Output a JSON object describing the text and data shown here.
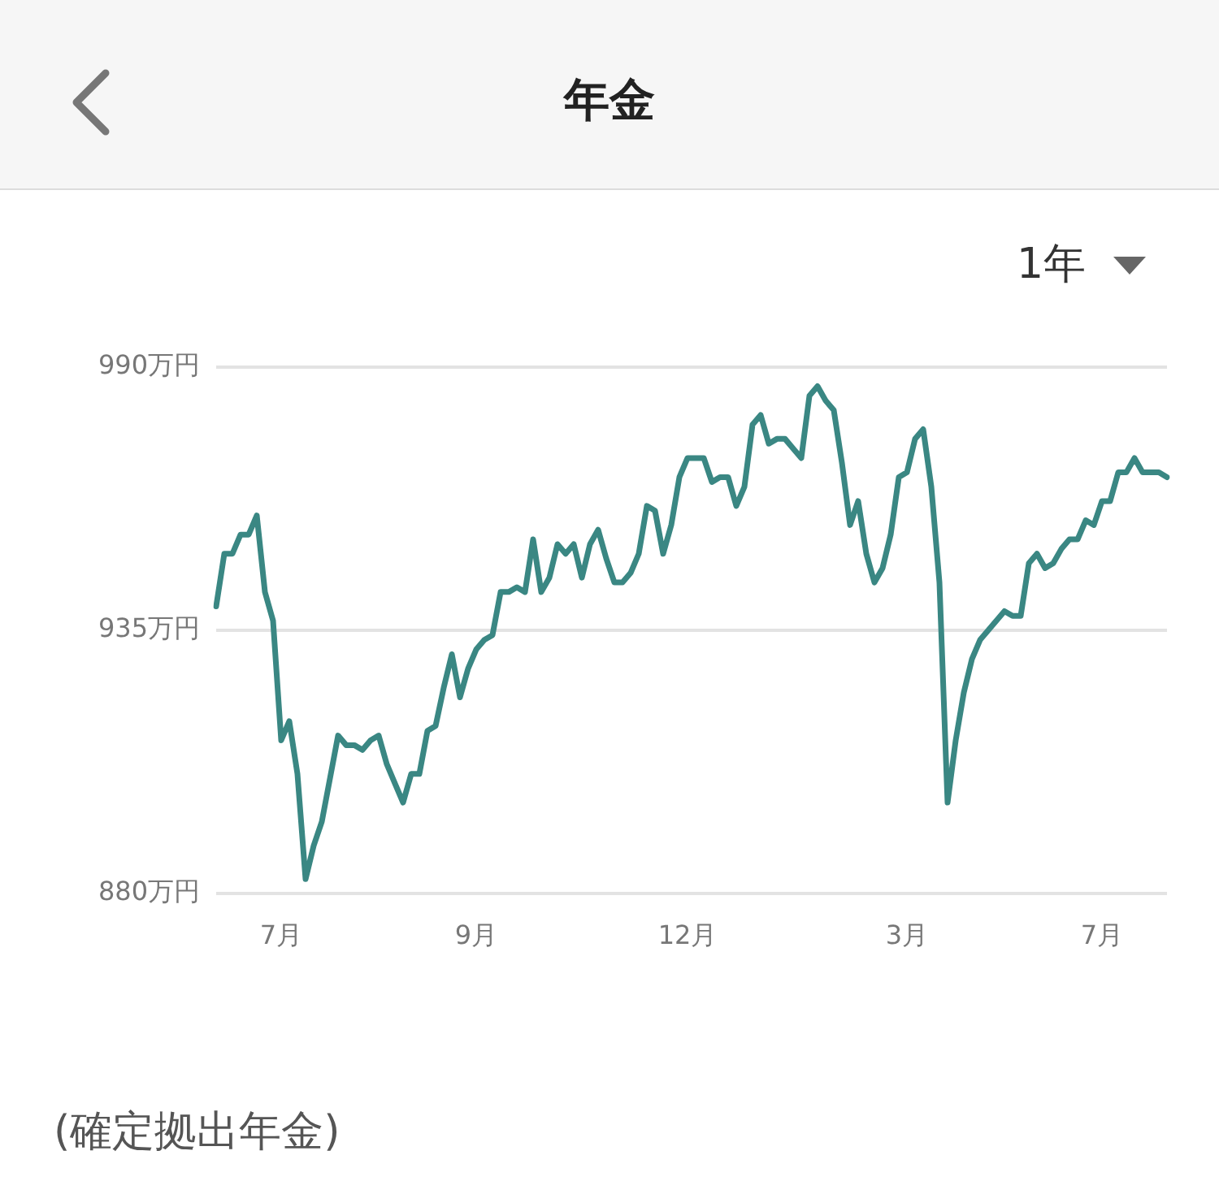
{
  "chart_data": {
    "type": "line",
    "title": "年金",
    "categories": [
      null,
      null,
      null,
      null,
      null,
      null,
      null,
      null,
      "7月",
      null,
      null,
      null,
      null,
      null,
      null,
      null,
      null,
      null,
      null,
      null,
      null,
      null,
      null,
      null,
      null,
      null,
      null,
      null,
      null,
      null,
      null,
      null,
      "9月",
      null,
      null,
      null,
      null,
      null,
      null,
      null,
      null,
      null,
      null,
      null,
      null,
      null,
      null,
      null,
      null,
      null,
      null,
      null,
      null,
      null,
      null,
      null,
      null,
      null,
      "12月",
      null,
      null,
      null,
      null,
      null,
      null,
      null,
      null,
      null,
      null,
      null,
      null,
      null,
      null,
      null,
      null,
      null,
      null,
      null,
      null,
      null,
      null,
      null,
      null,
      null,
      null,
      "3月",
      null,
      null,
      null,
      null,
      null,
      null,
      null,
      null,
      null,
      null,
      null,
      null,
      null,
      null,
      null,
      null,
      null,
      null,
      null,
      null,
      null,
      null,
      null,
      "7月",
      null,
      null,
      null,
      null,
      null,
      null,
      null,
      null
    ],
    "series": [
      {
        "color": "#3a8783",
        "values": [
          940,
          951,
          951,
          955,
          955,
          959,
          943,
          937,
          912,
          916,
          905,
          883,
          890,
          895,
          904,
          913,
          911,
          911,
          910,
          912,
          913,
          907,
          903,
          899,
          905,
          905,
          914,
          915,
          923,
          930,
          921,
          927,
          931,
          933,
          934,
          943,
          943,
          944,
          943,
          954,
          943,
          946,
          953,
          951,
          953,
          946,
          953,
          956,
          950,
          945,
          945,
          947,
          951,
          961,
          960,
          951,
          957,
          967,
          971,
          971,
          971,
          966,
          967,
          967,
          961,
          965,
          978,
          980,
          974,
          975,
          975,
          973,
          971,
          984,
          986,
          983,
          981,
          970,
          957,
          962,
          951,
          945,
          948,
          955,
          967,
          968,
          975,
          977,
          965,
          945,
          899,
          912,
          922,
          929,
          933,
          935,
          937,
          939,
          938,
          938,
          949,
          951,
          948,
          949,
          952,
          954,
          954,
          958,
          957,
          962,
          962,
          968,
          968,
          971,
          968,
          968,
          968,
          967
        ]
      }
    ],
    "ylim": [
      880,
      990
    ],
    "yticks": [
      {
        "value": 880,
        "label": "880万円"
      },
      {
        "value": 935,
        "label": "935万円"
      },
      {
        "value": 990,
        "label": "990万円"
      }
    ],
    "grid": "y",
    "marker": "none",
    "annotations": [
      "1年",
      "(確定拠出年金)"
    ]
  }
}
